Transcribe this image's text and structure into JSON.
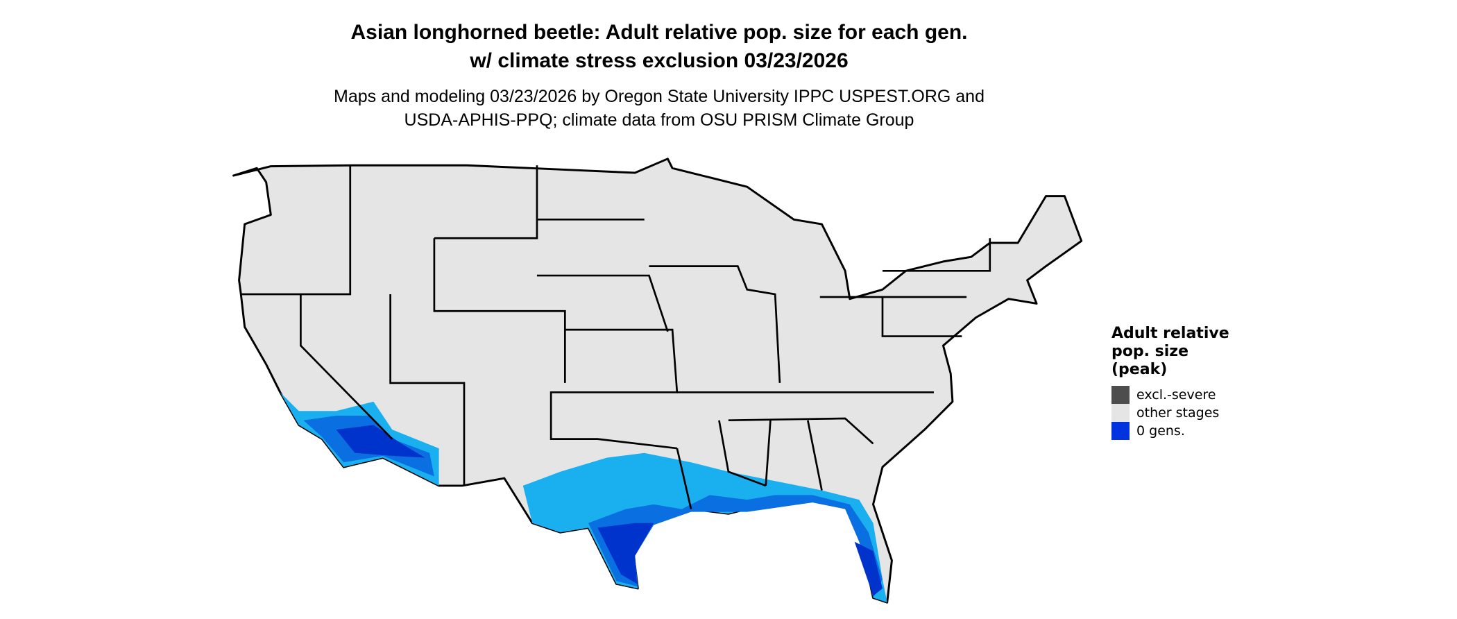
{
  "title": {
    "line1": "Asian longhorned beetle: Adult relative pop. size for each gen.",
    "line2": "w/ climate stress exclusion 03/23/2026"
  },
  "subtitle": {
    "line1": "Maps and modeling 03/23/2026 by Oregon State University IPPC USPEST.ORG and",
    "line2": "USDA-APHIS-PPQ; climate data from OSU PRISM Climate Group"
  },
  "map": {
    "region": "Contiguous United States",
    "colors": {
      "land": "#e5e5e5",
      "border": "#000000",
      "light_blue": "#1ab0f0",
      "mid_blue": "#0a6fe0",
      "dark_blue": "#0033cc"
    }
  },
  "legend": {
    "title_lines": [
      "Adult relative",
      "pop. size",
      "(peak)"
    ],
    "items": [
      {
        "label": "excl.-severe",
        "color": "#4d4d4d"
      },
      {
        "label": "other stages",
        "color": "#e5e5e5"
      },
      {
        "label": "0 gens.",
        "color": "#0033dd"
      }
    ]
  }
}
